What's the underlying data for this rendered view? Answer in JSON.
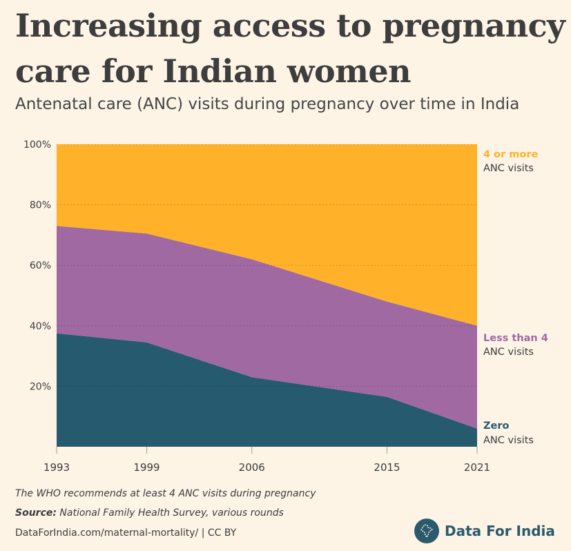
{
  "title": "Increasing access to pregnancy care for Indian women",
  "subtitle": "Antenatal care (ANC) visits during pregnancy over time in India",
  "chart_data": {
    "type": "area",
    "stacked": true,
    "x": [
      1993,
      1999,
      2006,
      2015,
      2021
    ],
    "x_tick_labels": [
      "1993",
      "1999",
      "2006",
      "2015",
      "2021"
    ],
    "y_tick_labels": [
      "20%",
      "40%",
      "60%",
      "80%",
      "100%"
    ],
    "ylim": [
      0,
      100
    ],
    "series": [
      {
        "name": "Zero ANC visits",
        "label_line1": "Zero",
        "label_line2": "ANC visits",
        "color": "#265a6e",
        "values": [
          37.5,
          34.5,
          23,
          16.5,
          6
        ]
      },
      {
        "name": "Less than 4 ANC visits",
        "label_line1": "Less than 4",
        "label_line2": "ANC visits",
        "color": "#a069a2",
        "values": [
          35.5,
          36,
          39,
          31.5,
          34
        ]
      },
      {
        "name": "4 or more ANC visits",
        "label_line1": "4 or more",
        "label_line2": "ANC visits",
        "color": "#ffb12a",
        "values": [
          27,
          29.5,
          38,
          52,
          60
        ]
      }
    ]
  },
  "note": "The WHO recommends at least 4 ANC visits during pregnancy",
  "source_label": "Source:",
  "source_text": "National Family Health Survey, various rounds",
  "footer": "DataForIndia.com/maternal-mortality/  |  CC BY",
  "brand": "Data For India"
}
